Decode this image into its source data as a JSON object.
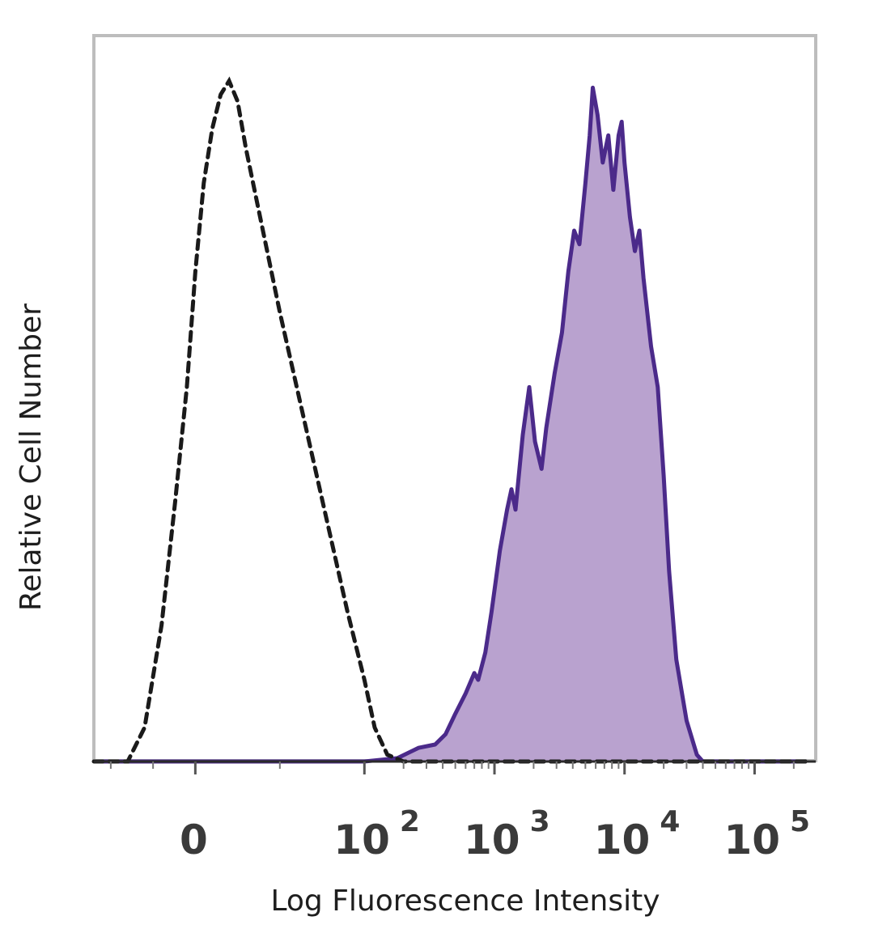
{
  "chart_data": {
    "type": "area",
    "x_scale": "biexponential",
    "xlabel": "Log Fluorescence Intensity",
    "ylabel": "Relative Cell Number",
    "x_ticks": [
      {
        "value": "0",
        "base": "0",
        "exp": ""
      },
      {
        "value": "100",
        "base": "10",
        "exp": "2"
      },
      {
        "value": "1000",
        "base": "10",
        "exp": "3"
      },
      {
        "value": "10000",
        "base": "10",
        "exp": "4"
      },
      {
        "value": "100000",
        "base": "10",
        "exp": "5"
      }
    ],
    "xlim": [
      -60,
      250000
    ],
    "ylim": [
      0,
      1
    ],
    "grid": false,
    "legend": "none",
    "series": [
      {
        "style": "dashed",
        "fill": false,
        "color": "#1a1a1a",
        "points": [
          [
            -60,
            0.0
          ],
          [
            -40,
            0.0
          ],
          [
            -30,
            0.05
          ],
          [
            -20,
            0.2
          ],
          [
            -12,
            0.38
          ],
          [
            -5,
            0.55
          ],
          [
            0,
            0.72
          ],
          [
            5,
            0.85
          ],
          [
            10,
            0.93
          ],
          [
            15,
            0.98
          ],
          [
            20,
            1.0
          ],
          [
            25,
            0.97
          ],
          [
            30,
            0.9
          ],
          [
            40,
            0.78
          ],
          [
            50,
            0.66
          ],
          [
            60,
            0.55
          ],
          [
            70,
            0.44
          ],
          [
            80,
            0.33
          ],
          [
            90,
            0.22
          ],
          [
            100,
            0.12
          ],
          [
            120,
            0.05
          ],
          [
            150,
            0.01
          ],
          [
            200,
            0.0
          ],
          [
            1000,
            0.0
          ],
          [
            10000,
            0.0
          ],
          [
            250000,
            0.0
          ]
        ]
      },
      {
        "style": "solid",
        "fill": true,
        "color": "#4b2a8a",
        "fill_color": "#b9a2cf",
        "points": [
          [
            -60,
            0.0
          ],
          [
            100,
            0.0
          ],
          [
            180,
            0.005
          ],
          [
            260,
            0.02
          ],
          [
            350,
            0.025
          ],
          [
            420,
            0.04
          ],
          [
            500,
            0.07
          ],
          [
            600,
            0.1
          ],
          [
            700,
            0.13
          ],
          [
            750,
            0.12
          ],
          [
            850,
            0.16
          ],
          [
            950,
            0.22
          ],
          [
            1100,
            0.31
          ],
          [
            1250,
            0.37
          ],
          [
            1350,
            0.4
          ],
          [
            1450,
            0.37
          ],
          [
            1650,
            0.48
          ],
          [
            1850,
            0.55
          ],
          [
            2050,
            0.47
          ],
          [
            2300,
            0.43
          ],
          [
            2500,
            0.49
          ],
          [
            2900,
            0.57
          ],
          [
            3300,
            0.63
          ],
          [
            3700,
            0.72
          ],
          [
            4100,
            0.78
          ],
          [
            4500,
            0.76
          ],
          [
            5000,
            0.85
          ],
          [
            5400,
            0.92
          ],
          [
            5700,
            0.99
          ],
          [
            6200,
            0.95
          ],
          [
            6800,
            0.88
          ],
          [
            7500,
            0.92
          ],
          [
            8200,
            0.84
          ],
          [
            9000,
            0.92
          ],
          [
            9500,
            0.94
          ],
          [
            10000,
            0.88
          ],
          [
            11000,
            0.8
          ],
          [
            12000,
            0.75
          ],
          [
            13000,
            0.78
          ],
          [
            14000,
            0.71
          ],
          [
            16000,
            0.61
          ],
          [
            18000,
            0.55
          ],
          [
            20000,
            0.42
          ],
          [
            22000,
            0.28
          ],
          [
            25000,
            0.15
          ],
          [
            30000,
            0.06
          ],
          [
            36000,
            0.01
          ],
          [
            40000,
            0.0
          ],
          [
            250000,
            0.0
          ]
        ]
      }
    ]
  }
}
